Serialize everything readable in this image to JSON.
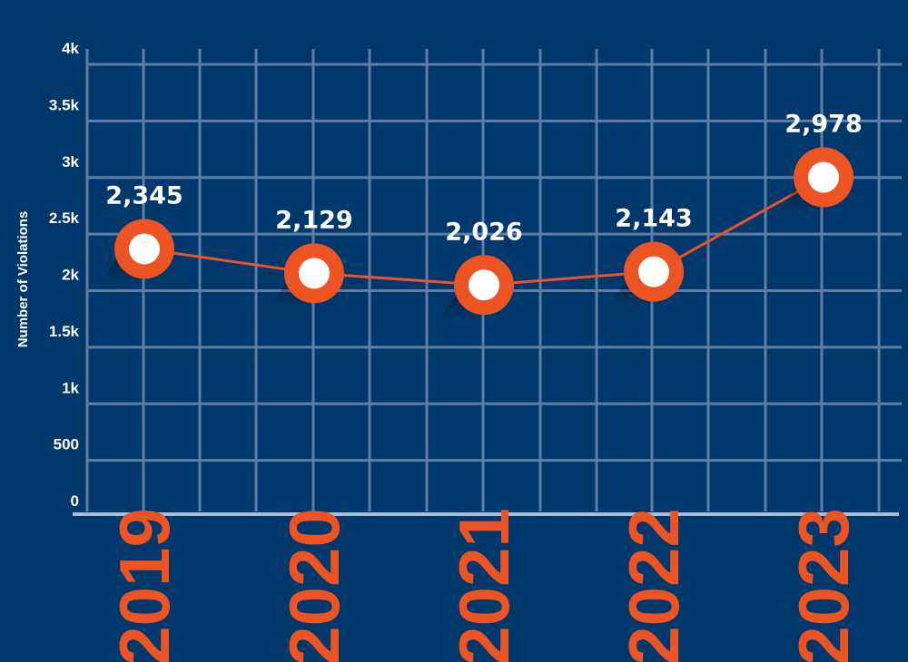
{
  "chart_data": {
    "type": "line",
    "x": [
      "2019",
      "2020",
      "2021",
      "2022",
      "2023"
    ],
    "values": [
      2345,
      2129,
      2026,
      2143,
      2978
    ],
    "data_labels": [
      "2,345",
      "2,129",
      "2,026",
      "2,143",
      "2,978"
    ],
    "ylabel": "Number of Violations",
    "ylim": [
      0,
      4000
    ],
    "yticks": [
      0,
      500,
      1000,
      1500,
      2000,
      2500,
      3000,
      3500,
      4000
    ],
    "ytick_labels": [
      "0",
      "500",
      "1k",
      "1.5k",
      "2k",
      "2.5k",
      "3k",
      "3.5k",
      "4k"
    ],
    "grid": true,
    "colors": {
      "background": "#01386c",
      "grid": "#5e7ea6",
      "axis": "#a9bdd6",
      "line": "#e8542b",
      "marker": "#ec5424",
      "marker_inner": "#ffffff",
      "year_labels": "#ec5424",
      "text": "#ffffff"
    }
  }
}
